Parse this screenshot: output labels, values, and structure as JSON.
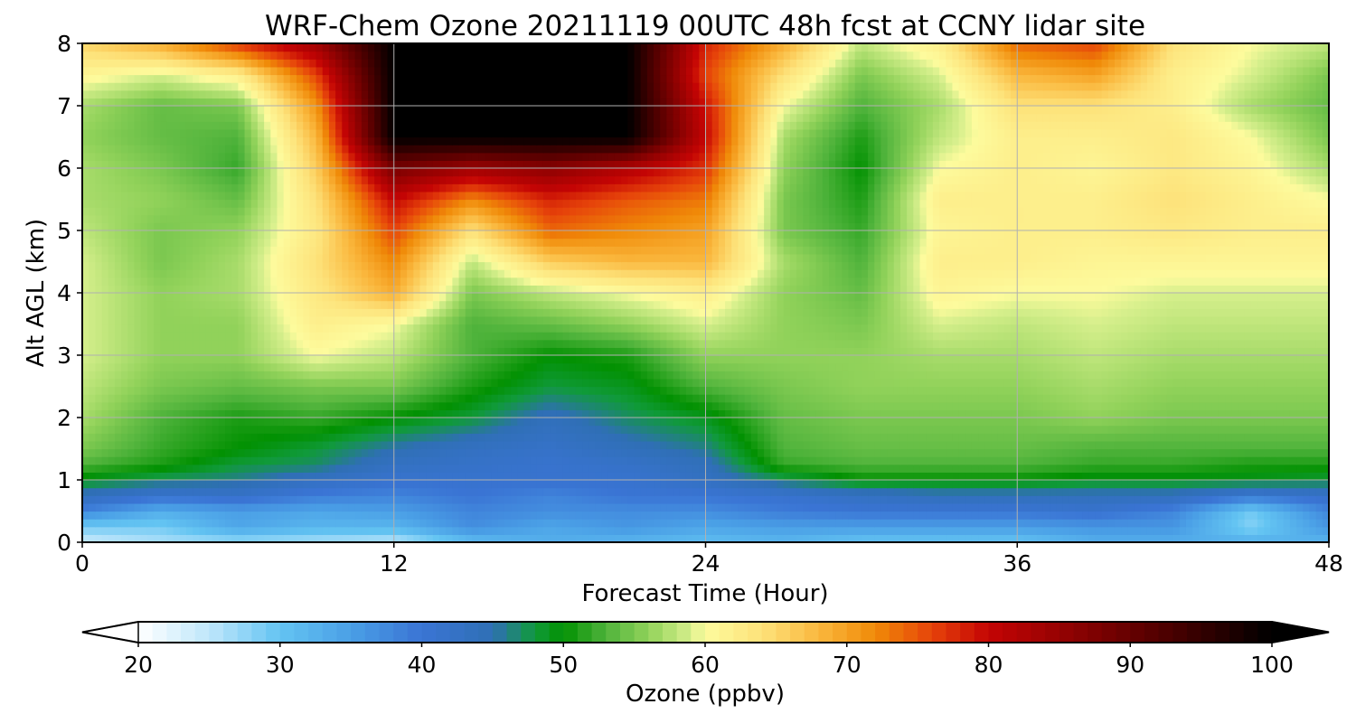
{
  "chart_data": {
    "type": "heatmap",
    "title": "WRF-Chem Ozone  20211119 00UTC 48h fcst at CCNY lidar site",
    "xlabel": "Forecast Time (Hour)",
    "ylabel": "Alt AGL (km)",
    "xlim": [
      0,
      48
    ],
    "ylim": [
      0,
      8
    ],
    "x_ticks": [
      0,
      12,
      24,
      36,
      48
    ],
    "y_ticks": [
      0,
      1,
      2,
      3,
      4,
      5,
      6,
      7,
      8
    ],
    "grid": true,
    "colorbar": {
      "label": "Ozone  (ppbv)",
      "range": [
        20,
        100
      ],
      "ticks": [
        20,
        30,
        40,
        50,
        60,
        70,
        80,
        90,
        100
      ],
      "extend": "both",
      "orientation": "horizontal",
      "placement": "bottom",
      "colors": [
        [
          20,
          "#ffffff"
        ],
        [
          25,
          "#bfe6fb"
        ],
        [
          30,
          "#63c4f2"
        ],
        [
          35,
          "#4a9fe6"
        ],
        [
          40,
          "#3a74d4"
        ],
        [
          45,
          "#2f6fb5"
        ],
        [
          48,
          "#109a3a"
        ],
        [
          50,
          "#029102"
        ],
        [
          53,
          "#4fb33b"
        ],
        [
          56,
          "#91d25a"
        ],
        [
          59,
          "#d6ef8c"
        ],
        [
          60,
          "#fdfb9d"
        ],
        [
          64,
          "#fde27a"
        ],
        [
          68,
          "#fab83e"
        ],
        [
          72,
          "#f08a08"
        ],
        [
          76,
          "#e6430a"
        ],
        [
          80,
          "#c40404"
        ],
        [
          85,
          "#960202"
        ],
        [
          92,
          "#520000"
        ],
        [
          100,
          "#000000"
        ]
      ]
    },
    "z_units": "ppbv",
    "x": [
      0,
      3,
      6,
      9,
      12,
      15,
      18,
      21,
      24,
      27,
      30,
      33,
      36,
      39,
      42,
      45,
      48
    ],
    "y": [
      0,
      0.25,
      0.5,
      0.75,
      1,
      1.25,
      1.5,
      2,
      2.5,
      3,
      3.5,
      4,
      4.5,
      5,
      5.5,
      6,
      6.5,
      7,
      7.5,
      8
    ],
    "z": [
      [
        24,
        26,
        27,
        26,
        25,
        31,
        33,
        32,
        31,
        32,
        30,
        30,
        30,
        33,
        33,
        33,
        32
      ],
      [
        29,
        29,
        34,
        32,
        32,
        37,
        34,
        36,
        34,
        35,
        35,
        35,
        35,
        36,
        36,
        28,
        36
      ],
      [
        38,
        33,
        35,
        34,
        35,
        38,
        37,
        37,
        37,
        39,
        40,
        40,
        40,
        41,
        38,
        29,
        38
      ],
      [
        44,
        41,
        42,
        39,
        38,
        40,
        38,
        40,
        40,
        41,
        43,
        44,
        44,
        44,
        44,
        40,
        42
      ],
      [
        49,
        47,
        46,
        43,
        41,
        41,
        41,
        41,
        43,
        47,
        50,
        50,
        50,
        49,
        49,
        49,
        48
      ],
      [
        53,
        51,
        48,
        47,
        43,
        42,
        41,
        42,
        44,
        52,
        53,
        53,
        53,
        52,
        52,
        51,
        51
      ],
      [
        55,
        52,
        50,
        48,
        45,
        43,
        42,
        44,
        46,
        53,
        54,
        54,
        54,
        53,
        53,
        53,
        53
      ],
      [
        57,
        53,
        51,
        52,
        50,
        48,
        44,
        47,
        49,
        54,
        55,
        55,
        55,
        56,
        55,
        55,
        55
      ],
      [
        58,
        55,
        54,
        55,
        55,
        51,
        48,
        49,
        53,
        55,
        56,
        56,
        56,
        57,
        56,
        56,
        56
      ],
      [
        59,
        56,
        56,
        60,
        58,
        53,
        50,
        51,
        56,
        56,
        56,
        57,
        57,
        58,
        57,
        57,
        57
      ],
      [
        59,
        56,
        56,
        62,
        60,
        53,
        54,
        56,
        59,
        56,
        55,
        59,
        58,
        59,
        58,
        58,
        58
      ],
      [
        59,
        56,
        57,
        63,
        69,
        55,
        58,
        60,
        62,
        56,
        54,
        61,
        60,
        60,
        59,
        59,
        59
      ],
      [
        59,
        55,
        57,
        64,
        72,
        58,
        66,
        68,
        68,
        57,
        53,
        62,
        62,
        61,
        61,
        61,
        61
      ],
      [
        58,
        55,
        56,
        63,
        76,
        64,
        74,
        72,
        70,
        55,
        52,
        61,
        62,
        62,
        63,
        62,
        62
      ],
      [
        57,
        56,
        54,
        64,
        80,
        72,
        78,
        75,
        73,
        55,
        51,
        62,
        62,
        62,
        64,
        62,
        60
      ],
      [
        57,
        55,
        52,
        66,
        88,
        84,
        86,
        82,
        77,
        56,
        50,
        60,
        62,
        61,
        63,
        61,
        57
      ],
      [
        56,
        54,
        53,
        68,
        100,
        100,
        100,
        100,
        80,
        57,
        51,
        58,
        62,
        62,
        63,
        60,
        55
      ],
      [
        57,
        54,
        55,
        71,
        100,
        100,
        100,
        100,
        79,
        60,
        53,
        57,
        64,
        64,
        62,
        57,
        54
      ],
      [
        61,
        59,
        62,
        76,
        100,
        100,
        100,
        100,
        76,
        64,
        55,
        59,
        68,
        70,
        62,
        59,
        55
      ],
      [
        65,
        69,
        77,
        84,
        100,
        100,
        100,
        100,
        78,
        69,
        58,
        62,
        74,
        76,
        64,
        60,
        58
      ]
    ]
  }
}
